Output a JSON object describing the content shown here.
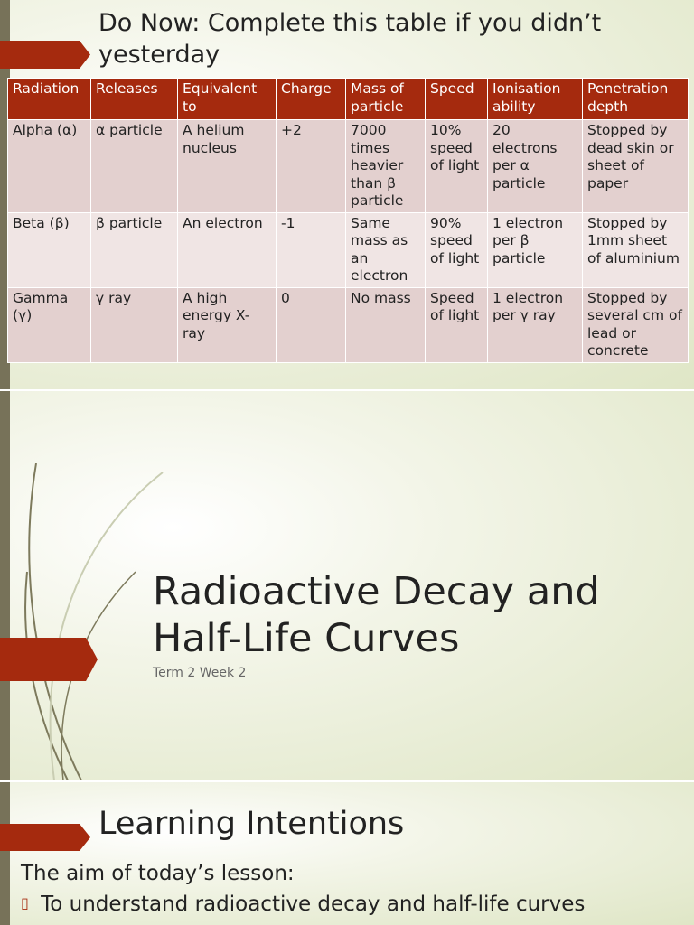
{
  "slides": [
    {
      "title": "Do Now: Complete this table if you didn’t yesterday",
      "table": {
        "header": [
          "Radiation",
          "Releases",
          "Equivalent to",
          "Charge",
          "Mass of particle",
          "Speed",
          "Ionisation ability",
          "Penetration depth"
        ],
        "rows": [
          [
            "Alpha (α)",
            "α particle",
            "A helium nucleus",
            "+2",
            "7000 times heavier than β particle",
            "10% speed of light",
            "20 electrons per α particle",
            "Stopped by dead skin or sheet of paper"
          ],
          [
            "Beta (β)",
            "β  particle",
            "An electron",
            "-1",
            "Same mass as an electron",
            "90% speed of light",
            "1 electron per β particle",
            "Stopped by 1mm sheet of aluminium"
          ],
          [
            "Gamma (γ)",
            "γ  ray",
            "A high energy X-ray",
            "0",
            "No mass",
            "Speed of light",
            "1 electron per γ  ray",
            "Stopped by several cm of lead or concrete"
          ]
        ]
      }
    },
    {
      "title": "Radioactive Decay and Half-Life Curves",
      "subtitle": "Term 2 Week 2"
    },
    {
      "title": "Learning Intentions",
      "intro": "The aim of today’s lesson:",
      "bullets": [
        "To understand radioactive decay and half-life curves"
      ]
    }
  ]
}
